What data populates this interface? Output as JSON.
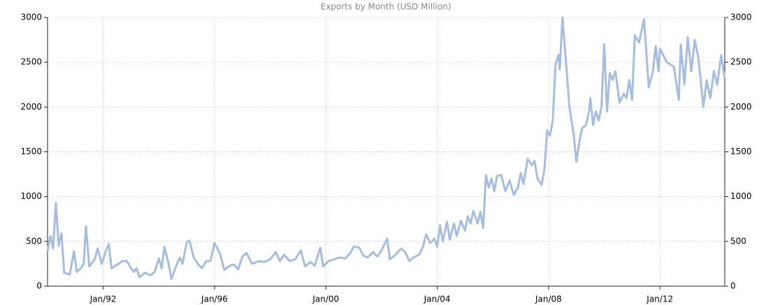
{
  "chart_data": {
    "type": "line",
    "title": "Exports by Month (USD Million)",
    "x": [
      1990.0,
      1990.1,
      1990.2,
      1990.3,
      1990.4,
      1990.5,
      1990.6,
      1990.8,
      1990.95,
      1991.05,
      1991.2,
      1991.3,
      1991.38,
      1991.5,
      1991.7,
      1991.8,
      1991.95,
      1992.1,
      1992.2,
      1992.3,
      1992.5,
      1992.7,
      1992.85,
      1993.0,
      1993.1,
      1993.2,
      1993.3,
      1993.5,
      1993.7,
      1993.85,
      1994.0,
      1994.1,
      1994.2,
      1994.35,
      1994.45,
      1994.6,
      1994.75,
      1994.85,
      1995.0,
      1995.1,
      1995.25,
      1995.4,
      1995.55,
      1995.7,
      1995.85,
      1996.0,
      1996.2,
      1996.35,
      1996.55,
      1996.7,
      1996.85,
      1997.0,
      1997.15,
      1997.35,
      1997.6,
      1997.8,
      1998.0,
      1998.2,
      1998.35,
      1998.5,
      1998.7,
      1998.9,
      1999.1,
      1999.25,
      1999.45,
      1999.6,
      1999.8,
      1999.9,
      2000.1,
      2000.3,
      2000.5,
      2000.7,
      2000.9,
      2001.0,
      2001.2,
      2001.35,
      2001.5,
      2001.7,
      2001.85,
      2002.0,
      2002.2,
      2002.3,
      2002.5,
      2002.7,
      2002.85,
      2003.0,
      2003.15,
      2003.35,
      2003.5,
      2003.6,
      2003.75,
      2003.9,
      2004.0,
      2004.1,
      2004.2,
      2004.35,
      2004.45,
      2004.6,
      2004.7,
      2004.85,
      2005.0,
      2005.1,
      2005.2,
      2005.3,
      2005.45,
      2005.55,
      2005.65,
      2005.75,
      2005.85,
      2005.95,
      2006.05,
      2006.15,
      2006.3,
      2006.45,
      2006.6,
      2006.75,
      2006.9,
      2007.0,
      2007.1,
      2007.25,
      2007.4,
      2007.5,
      2007.6,
      2007.75,
      2007.85,
      2007.95,
      2008.05,
      2008.15,
      2008.25,
      2008.35,
      2008.4,
      2008.5,
      2008.6,
      2008.75,
      2008.9,
      2009.0,
      2009.1,
      2009.2,
      2009.35,
      2009.45,
      2009.5,
      2009.6,
      2009.7,
      2009.8,
      2009.9,
      2010.0,
      2010.1,
      2010.2,
      2010.3,
      2010.4,
      2010.55,
      2010.7,
      2010.8,
      2010.9,
      2011.0,
      2011.1,
      2011.25,
      2011.43,
      2011.6,
      2011.75,
      2011.85,
      2011.95,
      2012.0,
      2012.25,
      2012.5,
      2012.68,
      2012.75,
      2012.88,
      2013.0,
      2013.13,
      2013.25,
      2013.38,
      2013.45,
      2013.56,
      2013.68,
      2013.81,
      2013.94,
      2014.06,
      2014.2,
      2014.33
    ],
    "series": [
      {
        "color": "#a7bddd",
        "values": [
          390,
          560,
          420,
          930,
          450,
          590,
          150,
          130,
          390,
          160,
          200,
          250,
          670,
          220,
          300,
          420,
          250,
          400,
          470,
          200,
          240,
          280,
          280,
          200,
          160,
          200,
          100,
          150,
          120,
          160,
          310,
          200,
          440,
          250,
          80,
          210,
          320,
          250,
          490,
          510,
          320,
          250,
          200,
          280,
          280,
          480,
          360,
          180,
          230,
          240,
          190,
          330,
          370,
          250,
          280,
          270,
          300,
          380,
          280,
          350,
          280,
          300,
          400,
          220,
          270,
          230,
          430,
          220,
          280,
          300,
          320,
          310,
          380,
          440,
          430,
          340,
          320,
          380,
          330,
          400,
          530,
          300,
          350,
          420,
          380,
          280,
          320,
          350,
          450,
          580,
          480,
          530,
          440,
          680,
          500,
          720,
          520,
          700,
          560,
          730,
          620,
          780,
          700,
          840,
          700,
          830,
          650,
          1240,
          1100,
          1200,
          1060,
          1230,
          1240,
          1060,
          1180,
          1020,
          1100,
          1260,
          1140,
          1420,
          1350,
          1400,
          1200,
          1130,
          1300,
          1740,
          1680,
          1850,
          2480,
          2580,
          2420,
          3000,
          2600,
          2000,
          1700,
          1390,
          1600,
          1760,
          1800,
          1950,
          2100,
          1800,
          1950,
          1850,
          2000,
          2700,
          1950,
          2380,
          2300,
          2400,
          2050,
          2150,
          2100,
          2300,
          2080,
          2800,
          2720,
          2980,
          2220,
          2400,
          2680,
          2400,
          2650,
          2500,
          2450,
          2080,
          2700,
          2250,
          2780,
          2400,
          2750,
          2550,
          2350,
          2000,
          2300,
          2100,
          2400,
          2250,
          2580,
          2320
        ]
      }
    ],
    "xlim": [
      1990.0,
      2014.33
    ],
    "xticks": [
      {
        "value": 1992,
        "label": "Jan/92"
      },
      {
        "value": 1996,
        "label": "Jan/96"
      },
      {
        "value": 2000,
        "label": "Jan/00"
      },
      {
        "value": 2004,
        "label": "Jan/04"
      },
      {
        "value": 2008,
        "label": "Jan/08"
      },
      {
        "value": 2012,
        "label": "Jan/12"
      }
    ],
    "ylim": [
      0,
      3000
    ],
    "yticks": [
      0,
      500,
      1000,
      1500,
      2000,
      2500,
      3000
    ],
    "y2lim": [
      0,
      3000
    ],
    "y2ticks": [
      0,
      500,
      1000,
      1500,
      2000,
      2500,
      3000
    ],
    "grid": true
  }
}
